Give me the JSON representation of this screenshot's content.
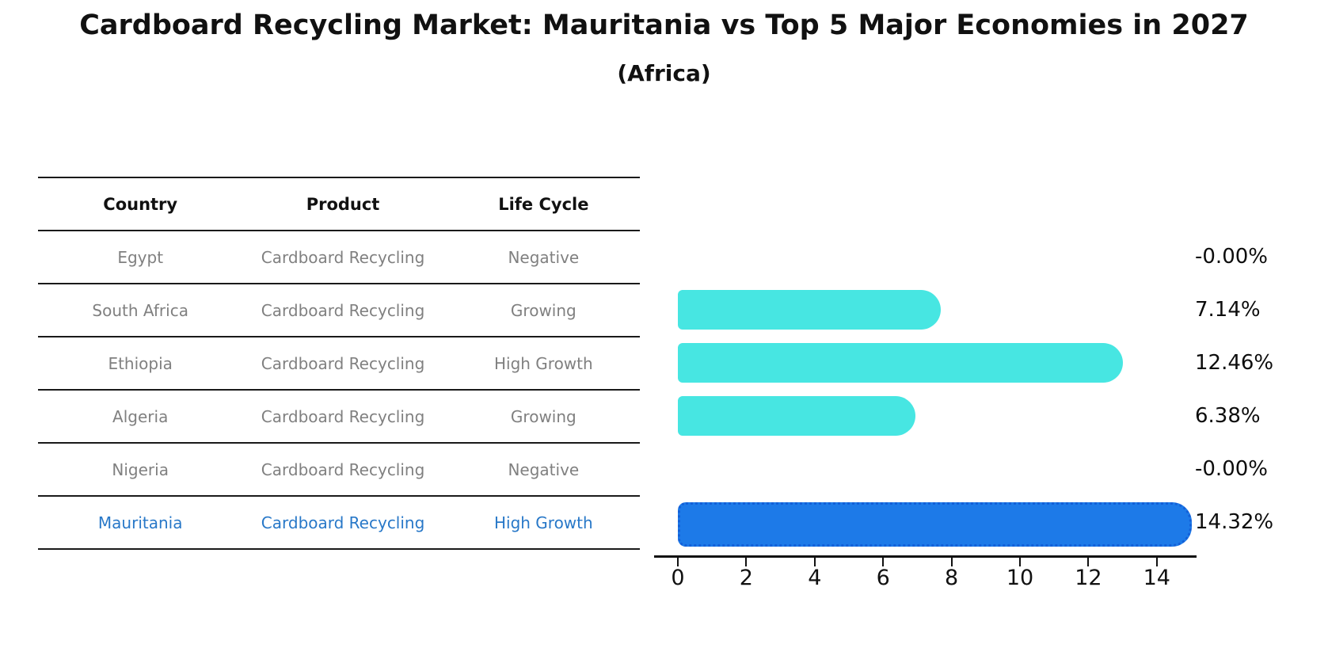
{
  "title": "Cardboard Recycling Market: Mauritania vs Top 5 Major Economies in 2027",
  "subtitle": "(Africa)",
  "table": {
    "headers": [
      "Country",
      "Product",
      "Life Cycle"
    ],
    "rows": [
      {
        "country": "Egypt",
        "product": "Cardboard Recycling",
        "life_cycle": "Negative",
        "highlight": false
      },
      {
        "country": "South Africa",
        "product": "Cardboard Recycling",
        "life_cycle": "Growing",
        "highlight": false
      },
      {
        "country": "Ethiopia",
        "product": "Cardboard Recycling",
        "life_cycle": "High Growth",
        "highlight": false
      },
      {
        "country": "Algeria",
        "product": "Cardboard Recycling",
        "life_cycle": "Growing",
        "highlight": false
      },
      {
        "country": "Nigeria",
        "product": "Cardboard Recycling",
        "life_cycle": "Negative",
        "highlight": false
      },
      {
        "country": "Mauritania",
        "product": "Cardboard Recycling",
        "life_cycle": "High Growth",
        "highlight": true
      }
    ]
  },
  "chart_data": {
    "type": "bar",
    "orientation": "horizontal",
    "title": "Cardboard Recycling Market: Mauritania vs Top 5 Major Economies in 2027",
    "subtitle": "(Africa)",
    "categories": [
      "Egypt",
      "South Africa",
      "Ethiopia",
      "Algeria",
      "Nigeria",
      "Mauritania"
    ],
    "values": [
      -0.0,
      7.14,
      12.46,
      6.38,
      -0.0,
      14.32
    ],
    "value_labels": [
      "-0.00%",
      "7.14%",
      "12.46%",
      "6.38%",
      "-0.00%",
      "14.32%"
    ],
    "x_ticks": [
      0,
      2,
      4,
      6,
      8,
      10,
      12,
      14
    ],
    "xlim": [
      0,
      15
    ],
    "grid": false,
    "legend": "none",
    "highlight_index": 5
  },
  "colors": {
    "bar": "#47E6E2",
    "highlight_bar": "#1D7AE8",
    "highlight_bar_border": "#1360D8",
    "highlight_text": "#2878C8",
    "table_text": "#808080",
    "axis": "#111111"
  }
}
